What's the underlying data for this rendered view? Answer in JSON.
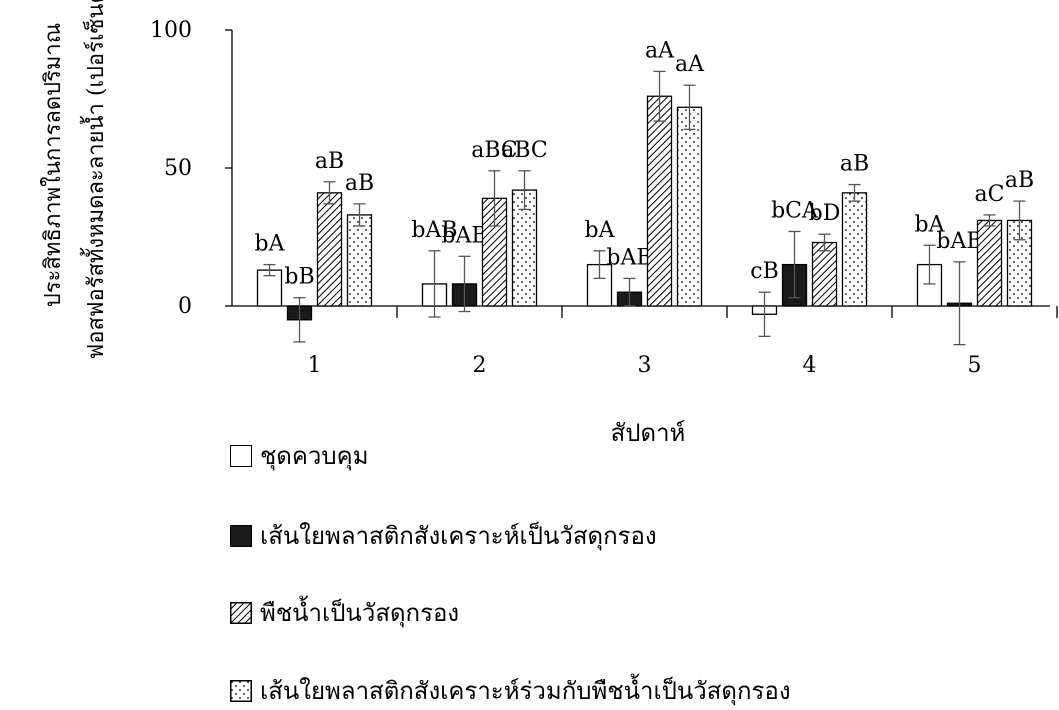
{
  "chart_data": {
    "type": "bar",
    "xlabel": "สัปดาห์",
    "ylabel_lines": [
      "ประสิทธิภาพในการลดปริมาณ",
      "ฟอสฟอรัสทั้งหมดละลายน้ำ (เปอร์เซ็นต์)"
    ],
    "ylim": [
      0,
      100
    ],
    "yticks": [
      0,
      50,
      100
    ],
    "categories": [
      "1",
      "2",
      "3",
      "4",
      "5"
    ],
    "legend_position": "bottom",
    "series": [
      {
        "name": "ชุดควบคุม",
        "fill": "white",
        "values": [
          13,
          8,
          15,
          -3,
          15
        ],
        "errors": [
          2,
          12,
          5,
          8,
          7
        ],
        "labels": [
          "bA",
          "bAB",
          "bA",
          "cB",
          "bA"
        ]
      },
      {
        "name": "เส้นใยพลาสติกสังเคราะห์เป็นวัสดุกรอง",
        "fill": "black",
        "values": [
          -5,
          8,
          5,
          15,
          1
        ],
        "errors": [
          8,
          10,
          5,
          12,
          15
        ],
        "labels": [
          "bB",
          "bAB",
          "bAB",
          "bCA",
          "bAB"
        ]
      },
      {
        "name": "พืชน้ำเป็นวัสดุกรอง",
        "fill": "diagonal",
        "values": [
          41,
          39,
          76,
          23,
          31
        ],
        "errors": [
          4,
          10,
          9,
          3,
          2
        ],
        "labels": [
          "aB",
          "aBC",
          "aA",
          "bD",
          "aC"
        ]
      },
      {
        "name": "เส้นใยพลาสติกสังเคราะห์ร่วมกับพืชน้ำเป็นวัสดุกรอง",
        "fill": "dots",
        "values": [
          33,
          42,
          72,
          41,
          31
        ],
        "errors": [
          4,
          7,
          8,
          3,
          7
        ],
        "labels": [
          "aB",
          "aBC",
          "aA",
          "aB",
          "aB"
        ]
      }
    ]
  },
  "legend": {
    "items": [
      {
        "label": "ชุดควบคุม",
        "swatch": "white"
      },
      {
        "label": "เส้นใยพลาสติกสังเคราะห์เป็นวัสดุกรอง",
        "swatch": "black"
      },
      {
        "label": "พืชน้ำเป็นวัสดุกรอง",
        "swatch": "diagonal"
      },
      {
        "label": "เส้นใยพลาสติกสังเคราะห์ร่วมกับพืชน้ำเป็นวัสดุกรอง",
        "swatch": "dots"
      }
    ]
  }
}
